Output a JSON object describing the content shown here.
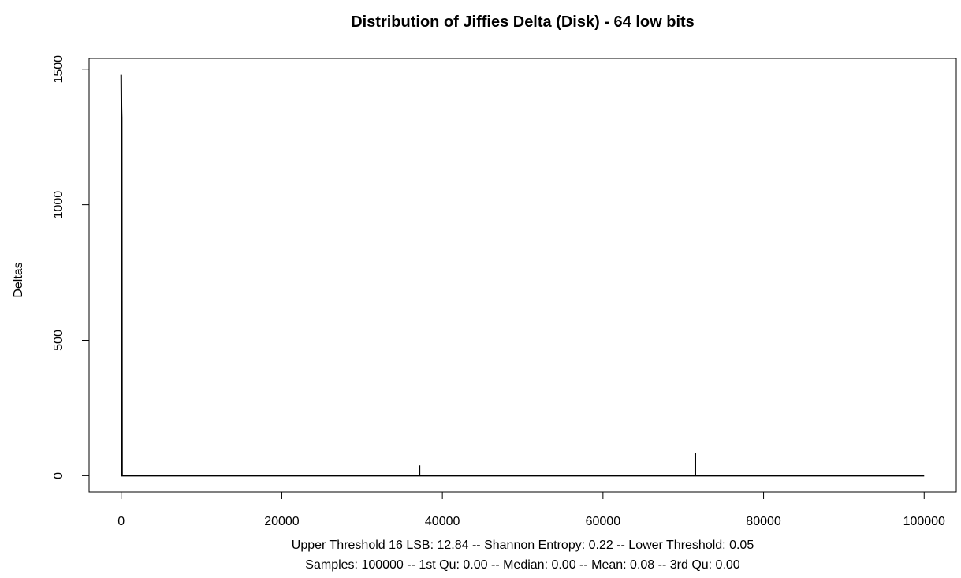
{
  "chart_data": {
    "type": "line",
    "title": "Distribution of Jiffies Delta (Disk) - 64 low bits",
    "subtitle_lines": [
      "Upper Threshold 16 LSB: 12.84 -- Shannon Entropy: 0.22 -- Lower Threshold: 0.05",
      "Samples: 100000 -- 1st Qu: 0.00 -- Median: 0.00 -- Mean: 0.08 -- 3rd Qu: 0.00"
    ],
    "xlabel": "",
    "ylabel": "Deltas",
    "xlim": [
      -4000,
      104000
    ],
    "ylim": [
      -60,
      1540
    ],
    "x_ticks": [
      0,
      20000,
      40000,
      60000,
      80000,
      100000
    ],
    "x_tick_labels": [
      "0",
      "20000",
      "40000",
      "60000",
      "80000",
      "100000"
    ],
    "y_ticks": [
      0,
      500,
      1000,
      1500
    ],
    "y_tick_labels": [
      "0",
      "500",
      "1000",
      "1500"
    ],
    "grid": false,
    "line_color": "#000000",
    "series": [
      {
        "points": [
          {
            "x": 0,
            "y": 1480
          },
          {
            "x": 30,
            "y": 1360
          },
          {
            "x": 60,
            "y": 1320
          },
          {
            "x": 100,
            "y": 0
          },
          {
            "x": 37150,
            "y": 0
          },
          {
            "x": 37150,
            "y": 38
          },
          {
            "x": 37150,
            "y": 0
          },
          {
            "x": 71500,
            "y": 0
          },
          {
            "x": 71500,
            "y": 85
          },
          {
            "x": 71500,
            "y": 0
          },
          {
            "x": 100000,
            "y": 0
          }
        ]
      }
    ]
  }
}
